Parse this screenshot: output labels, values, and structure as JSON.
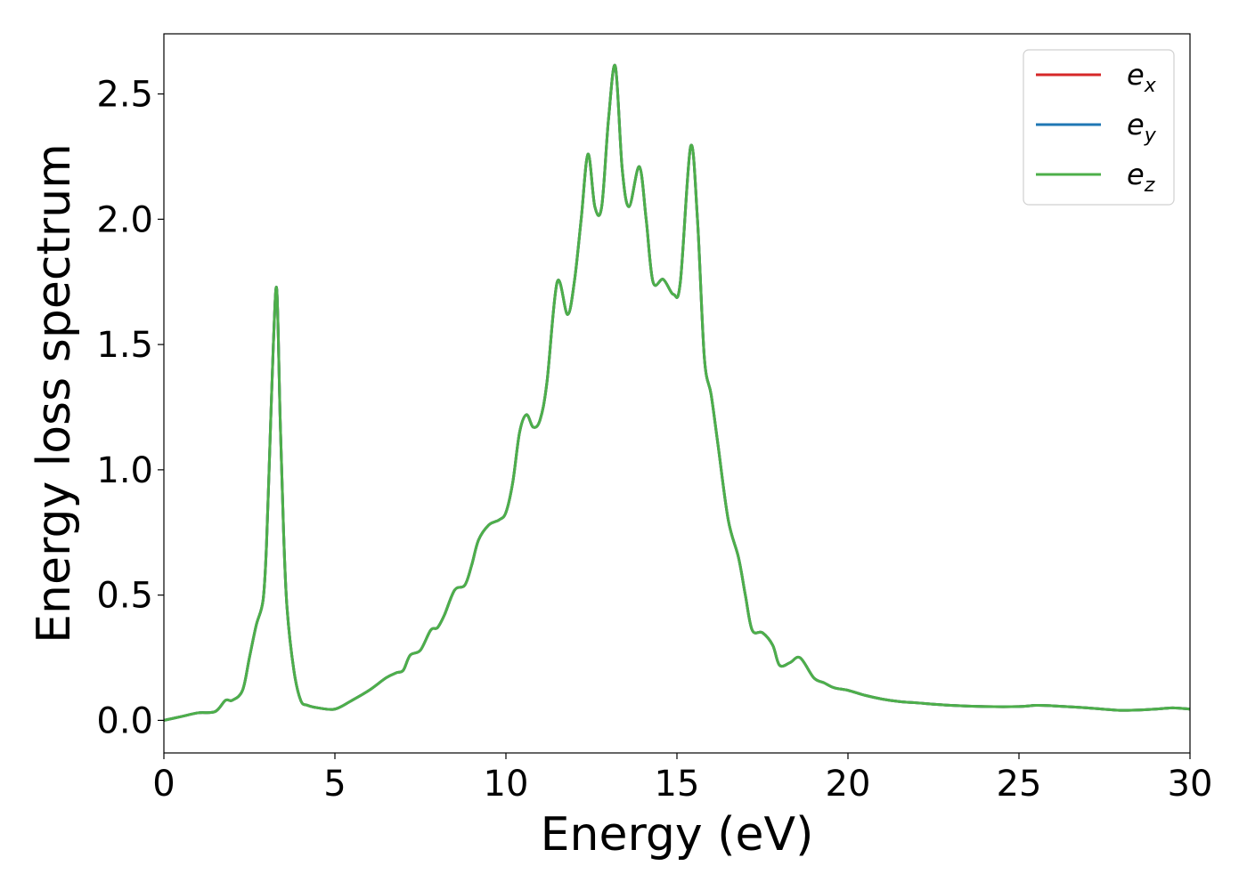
{
  "chart_data": {
    "type": "line",
    "xlabel": "Energy (eV)",
    "ylabel": "Energy loss spectrum",
    "xlim": [
      0,
      30
    ],
    "ylim": [
      -0.13,
      2.74
    ],
    "xticks": [
      0,
      5,
      10,
      15,
      20,
      25,
      30
    ],
    "xtick_labels": [
      "0",
      "5",
      "10",
      "15",
      "20",
      "25",
      "30"
    ],
    "yticks": [
      0.0,
      0.5,
      1.0,
      1.5,
      2.0,
      2.5
    ],
    "ytick_labels": [
      "0.0",
      "0.5",
      "1.0",
      "1.5",
      "2.0",
      "2.5"
    ],
    "grid": false,
    "legend_position": "top-right",
    "x": [
      0,
      0.5,
      1.0,
      1.5,
      1.8,
      2.0,
      2.3,
      2.5,
      2.7,
      2.9,
      3.0,
      3.1,
      3.2,
      3.3,
      3.4,
      3.5,
      3.6,
      3.8,
      4.0,
      4.2,
      4.5,
      5.0,
      5.5,
      6.0,
      6.5,
      6.8,
      7.0,
      7.2,
      7.5,
      7.8,
      8.0,
      8.2,
      8.5,
      8.8,
      9.0,
      9.2,
      9.5,
      9.8,
      10.0,
      10.2,
      10.4,
      10.6,
      10.8,
      11.0,
      11.2,
      11.5,
      11.8,
      12.0,
      12.2,
      12.4,
      12.6,
      12.8,
      13.0,
      13.2,
      13.4,
      13.6,
      13.9,
      14.1,
      14.3,
      14.6,
      14.9,
      15.1,
      15.4,
      15.6,
      15.8,
      16.0,
      16.2,
      16.5,
      16.8,
      17.0,
      17.2,
      17.5,
      17.8,
      18.0,
      18.3,
      18.6,
      19.0,
      19.3,
      19.6,
      20.0,
      20.5,
      21.0,
      21.5,
      22.0,
      23.0,
      24.0,
      25.0,
      25.5,
      26.0,
      27.0,
      28.0,
      29.0,
      29.5,
      30.0
    ],
    "series": [
      {
        "name": "e_x",
        "color": "#d62728",
        "values": [
          0.0,
          0.015,
          0.03,
          0.035,
          0.08,
          0.08,
          0.12,
          0.25,
          0.38,
          0.48,
          0.7,
          1.1,
          1.5,
          1.72,
          1.2,
          0.75,
          0.45,
          0.2,
          0.08,
          0.06,
          0.05,
          0.045,
          0.08,
          0.12,
          0.17,
          0.19,
          0.2,
          0.26,
          0.28,
          0.36,
          0.37,
          0.42,
          0.52,
          0.54,
          0.62,
          0.72,
          0.78,
          0.8,
          0.83,
          0.95,
          1.15,
          1.22,
          1.17,
          1.2,
          1.35,
          1.75,
          1.62,
          1.75,
          2.0,
          2.26,
          2.05,
          2.05,
          2.4,
          2.61,
          2.2,
          2.05,
          2.21,
          2.0,
          1.75,
          1.76,
          1.7,
          1.75,
          2.29,
          2.0,
          1.45,
          1.3,
          1.1,
          0.8,
          0.65,
          0.5,
          0.36,
          0.35,
          0.3,
          0.22,
          0.23,
          0.25,
          0.17,
          0.15,
          0.13,
          0.12,
          0.1,
          0.085,
          0.075,
          0.07,
          0.06,
          0.055,
          0.055,
          0.06,
          0.058,
          0.05,
          0.04,
          0.045,
          0.05,
          0.045
        ]
      },
      {
        "name": "e_y",
        "color": "#1f77b4",
        "values": [
          0.0,
          0.015,
          0.03,
          0.035,
          0.08,
          0.08,
          0.12,
          0.25,
          0.38,
          0.48,
          0.7,
          1.1,
          1.5,
          1.72,
          1.2,
          0.75,
          0.45,
          0.2,
          0.08,
          0.06,
          0.05,
          0.045,
          0.08,
          0.12,
          0.17,
          0.19,
          0.2,
          0.26,
          0.28,
          0.36,
          0.37,
          0.42,
          0.52,
          0.54,
          0.62,
          0.72,
          0.78,
          0.8,
          0.83,
          0.95,
          1.15,
          1.22,
          1.17,
          1.2,
          1.35,
          1.75,
          1.62,
          1.75,
          2.0,
          2.26,
          2.05,
          2.05,
          2.4,
          2.61,
          2.2,
          2.05,
          2.21,
          2.0,
          1.75,
          1.76,
          1.7,
          1.75,
          2.29,
          2.0,
          1.45,
          1.3,
          1.1,
          0.8,
          0.65,
          0.5,
          0.36,
          0.35,
          0.3,
          0.22,
          0.23,
          0.25,
          0.17,
          0.15,
          0.13,
          0.12,
          0.1,
          0.085,
          0.075,
          0.07,
          0.06,
          0.055,
          0.055,
          0.06,
          0.058,
          0.05,
          0.04,
          0.045,
          0.05,
          0.045
        ]
      },
      {
        "name": "e_z",
        "color": "#4daf4a",
        "values": [
          0.0,
          0.015,
          0.03,
          0.035,
          0.08,
          0.08,
          0.12,
          0.25,
          0.38,
          0.48,
          0.7,
          1.1,
          1.5,
          1.72,
          1.2,
          0.75,
          0.45,
          0.2,
          0.08,
          0.06,
          0.05,
          0.045,
          0.08,
          0.12,
          0.17,
          0.19,
          0.2,
          0.26,
          0.28,
          0.36,
          0.37,
          0.42,
          0.52,
          0.54,
          0.62,
          0.72,
          0.78,
          0.8,
          0.83,
          0.95,
          1.15,
          1.22,
          1.17,
          1.2,
          1.35,
          1.75,
          1.62,
          1.75,
          2.0,
          2.26,
          2.05,
          2.05,
          2.4,
          2.61,
          2.2,
          2.05,
          2.21,
          2.0,
          1.75,
          1.76,
          1.7,
          1.75,
          2.29,
          2.0,
          1.45,
          1.3,
          1.1,
          0.8,
          0.65,
          0.5,
          0.36,
          0.35,
          0.3,
          0.22,
          0.23,
          0.25,
          0.17,
          0.15,
          0.13,
          0.12,
          0.1,
          0.085,
          0.075,
          0.07,
          0.06,
          0.055,
          0.055,
          0.06,
          0.058,
          0.05,
          0.04,
          0.045,
          0.05,
          0.045
        ]
      }
    ],
    "legend": [
      {
        "base": "e",
        "sub": "x",
        "color": "#d62728"
      },
      {
        "base": "e",
        "sub": "y",
        "color": "#1f77b4"
      },
      {
        "base": "e",
        "sub": "z",
        "color": "#4daf4a"
      }
    ]
  }
}
